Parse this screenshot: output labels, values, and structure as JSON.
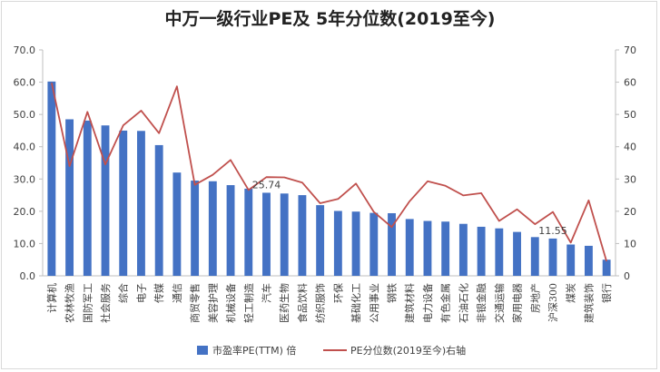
{
  "chart_data": {
    "type": "bar",
    "title": "中万一级行业PE及 5年分位数(2019至今)",
    "categories": [
      "计算机",
      "农林牧渔",
      "国防军工",
      "社会服务",
      "综合",
      "电子",
      "传媒",
      "通信",
      "商贸零售",
      "美容护理",
      "机械设备",
      "轻工制造",
      "汽车",
      "医药生物",
      "食品饮料",
      "纺织服饰",
      "环保",
      "基础化工",
      "公用事业",
      "钢铁",
      "建筑材料",
      "电力设备",
      "有色金属",
      "石油石化",
      "非银金融",
      "交通运输",
      "家用电器",
      "房地产",
      "沪深300",
      "煤炭",
      "建筑装饰",
      "银行"
    ],
    "series": [
      {
        "name": "市盈率PE(TTM) 倍",
        "axis": "left",
        "color": "#4472C4",
        "values": [
          60.2,
          48.5,
          48.1,
          46.6,
          45.0,
          44.9,
          40.5,
          32.0,
          29.5,
          29.3,
          28.1,
          27.0,
          25.74,
          25.5,
          25.0,
          21.9,
          20.1,
          19.9,
          19.5,
          19.4,
          17.6,
          17.0,
          16.8,
          16.1,
          15.2,
          14.7,
          13.6,
          12.0,
          11.55,
          9.7,
          9.3,
          5.0
        ]
      },
      {
        "name": "PE分位数(2019至今)右轴",
        "axis": "right",
        "color": "#C0504D",
        "values": [
          59.8,
          34.0,
          50.8,
          34.5,
          46.6,
          51.2,
          44.2,
          58.7,
          28.2,
          31.3,
          35.9,
          26.6,
          30.6,
          30.5,
          28.9,
          22.5,
          23.8,
          28.6,
          19.8,
          15.1,
          23.1,
          29.3,
          27.9,
          24.9,
          25.6,
          17.0,
          20.6,
          16.0,
          19.8,
          10.3,
          23.4,
          4.5
        ]
      }
    ],
    "data_labels": [
      {
        "series": 0,
        "category": "汽车",
        "text": "25.74"
      },
      {
        "series": 0,
        "category": "沪深300",
        "text": "11.55"
      }
    ],
    "y_left": {
      "min": 0,
      "max": 70,
      "step": 10,
      "tick_format": "0.0"
    },
    "y_right": {
      "min": 0,
      "max": 70,
      "step": 10,
      "tick_format": "0"
    },
    "grid": false,
    "legend_position": "bottom"
  }
}
